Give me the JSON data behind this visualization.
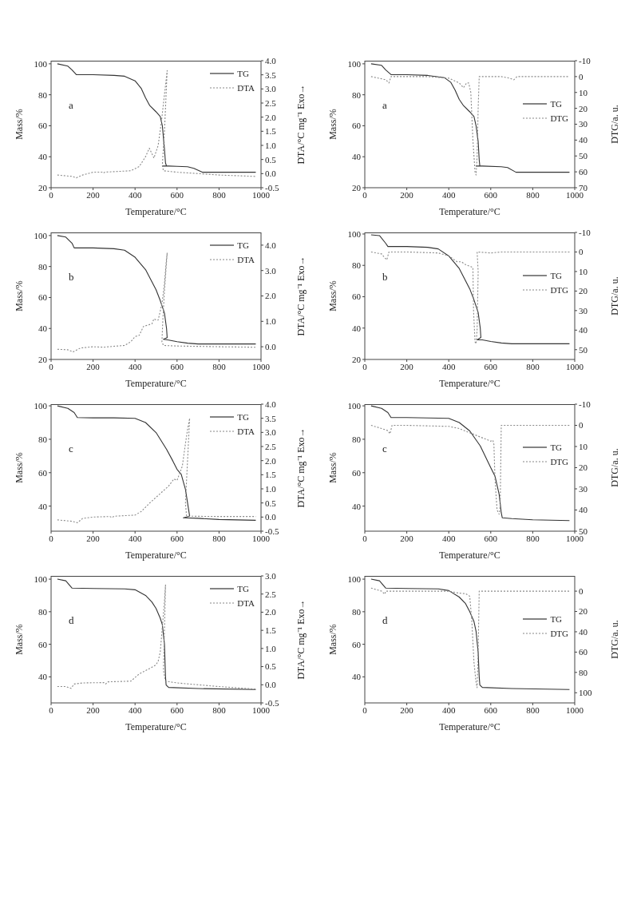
{
  "chart_data": [
    {
      "type": "line",
      "annotations": [
        "a"
      ],
      "xlabel": "Temperature/°C",
      "ylabel": "Mass/%",
      "y2label": "DTA/°C mg⁻¹  Exo→",
      "xlim": [
        0,
        1000
      ],
      "xticks": [
        0,
        200,
        400,
        600,
        800,
        1000
      ],
      "ylim": [
        20,
        102
      ],
      "yticks": [
        20,
        40,
        60,
        80,
        100
      ],
      "y2lim": [
        -0.5,
        4.0
      ],
      "y2ticks": [
        -0.5,
        {
          "value": 0,
          "label": "0.0"
        },
        0.5,
        {
          "value": 1,
          "label": "1.0"
        },
        1.5,
        {
          "value": 2,
          "label": "2.0"
        },
        2.5,
        {
          "value": 3,
          "label": "3.0"
        },
        3.5,
        {
          "value": 4,
          "label": "4.0"
        }
      ],
      "legend": "top right",
      "grid": false,
      "marker": "none",
      "series": [
        {
          "name": "TG",
          "color": "#333333",
          "line_style": "solid",
          "x": [
            30,
            80,
            100,
            120,
            200,
            300,
            350,
            400,
            430,
            450,
            470,
            500,
            520,
            530,
            540,
            545,
            550,
            530,
            560,
            600,
            650,
            680,
            720,
            800,
            975
          ],
          "values": [
            100,
            98.5,
            96,
            93,
            93,
            92.5,
            92,
            89,
            84,
            78,
            73,
            69,
            66,
            60,
            45,
            36,
            34,
            34,
            34,
            33.8,
            33.5,
            32.5,
            30,
            30,
            30
          ]
        },
        {
          "name": "DTA",
          "color": "#888888",
          "line_style": "dotted",
          "axis": "y2",
          "x": [
            30,
            100,
            120,
            150,
            200,
            245,
            250,
            255,
            300,
            380,
            420,
            450,
            468,
            490,
            510,
            525,
            540,
            553,
            540,
            530,
            535,
            600,
            700,
            800,
            975
          ],
          "values": [
            -0.05,
            -0.1,
            -0.15,
            -0.05,
            0.05,
            0.05,
            0.02,
            0.05,
            0.07,
            0.1,
            0.25,
            0.6,
            0.9,
            0.55,
            1.0,
            1.8,
            2.8,
            3.65,
            1.5,
            0.3,
            0.1,
            0.05,
            0.0,
            -0.05,
            -0.1
          ]
        }
      ]
    },
    {
      "type": "line",
      "annotations": [
        "a"
      ],
      "xlabel": "Temperature/°C",
      "ylabel": "Mass/%",
      "y2label": "DTG/a. u.",
      "xlim": [
        0,
        1000
      ],
      "xticks": [
        0,
        200,
        400,
        600,
        800,
        1000
      ],
      "ylim": [
        20,
        102
      ],
      "yticks": [
        20,
        40,
        60,
        80,
        100
      ],
      "y2lim": [
        70,
        -10
      ],
      "y2ticks": [
        -10,
        0,
        10,
        20,
        30,
        40,
        50,
        60,
        70
      ],
      "legend": "right",
      "grid": false,
      "marker": "none",
      "series": [
        {
          "name": "TG",
          "color": "#333333",
          "line_style": "solid",
          "x": [
            30,
            80,
            100,
            125,
            200,
            300,
            380,
            410,
            430,
            450,
            470,
            500,
            520,
            530,
            540,
            545,
            548,
            530,
            560,
            650,
            680,
            720,
            975
          ],
          "values": [
            100,
            99,
            96,
            93,
            93,
            92.5,
            91,
            88,
            83,
            77,
            73,
            69,
            66,
            60,
            50,
            38,
            34,
            34,
            34,
            33.5,
            33,
            30,
            30
          ]
        },
        {
          "name": "DTG",
          "color": "#888888",
          "line_style": "dotted",
          "axis": "y2",
          "x": [
            30,
            100,
            115,
            125,
            200,
            300,
            400,
            450,
            470,
            485,
            495,
            505,
            515,
            525,
            530,
            535,
            540,
            545,
            650,
            690,
            710,
            725,
            975
          ],
          "values": [
            0,
            2,
            4,
            0,
            0,
            0,
            1,
            4,
            7,
            4,
            4,
            10,
            40,
            60,
            62,
            50,
            20,
            0,
            0,
            1,
            2,
            0,
            0
          ]
        }
      ]
    },
    {
      "type": "line",
      "annotations": [
        "b"
      ],
      "xlabel": "Temperature/°C",
      "ylabel": "Mass/%",
      "y2label": "DTA/°C mg⁻¹  Exo→",
      "xlim": [
        0,
        1000
      ],
      "xticks": [
        0,
        200,
        400,
        600,
        800,
        1000
      ],
      "ylim": [
        20,
        102
      ],
      "yticks": [
        20,
        40,
        60,
        80,
        100
      ],
      "y2lim": [
        -0.5,
        4.5
      ],
      "y2ticks": [
        {
          "value": 0,
          "label": "0.0"
        },
        {
          "value": 1,
          "label": "1.0"
        },
        {
          "value": 2,
          "label": "2.0"
        },
        {
          "value": 3,
          "label": "3.0"
        },
        {
          "value": 4,
          "label": "4.0"
        }
      ],
      "legend": "top right",
      "grid": false,
      "marker": "none",
      "series": [
        {
          "name": "TG",
          "color": "#333333",
          "line_style": "solid",
          "x": [
            30,
            70,
            100,
            110,
            200,
            300,
            350,
            400,
            450,
            500,
            520,
            540,
            550,
            553,
            535,
            560,
            600,
            650,
            700,
            975
          ],
          "values": [
            100,
            99,
            95,
            92,
            92,
            91.5,
            90.5,
            86,
            78,
            65,
            58,
            50,
            40,
            34,
            33,
            32.5,
            31.5,
            30.5,
            30,
            30
          ]
        },
        {
          "name": "DTA",
          "color": "#888888",
          "line_style": "dotted",
          "axis": "y2",
          "x": [
            30,
            80,
            105,
            140,
            200,
            250,
            300,
            350,
            380,
            400,
            420,
            440,
            460,
            480,
            490,
            500,
            510,
            520,
            530,
            540,
            548,
            553,
            540,
            532,
            528,
            535,
            600,
            800,
            975
          ],
          "values": [
            -0.1,
            -0.12,
            -0.2,
            -0.05,
            0,
            -0.02,
            0.02,
            0.05,
            0.2,
            0.4,
            0.45,
            0.8,
            0.85,
            0.9,
            1.1,
            1.05,
            1.05,
            1.4,
            1.8,
            2.5,
            3.3,
            3.7,
            2.2,
            1.0,
            0.2,
            0.05,
            0.03,
            0,
            -0.02
          ]
        }
      ]
    },
    {
      "type": "line",
      "annotations": [
        "b"
      ],
      "xlabel": "Temperature/°C",
      "ylabel": "Mass/%",
      "y2label": "DTG/a. u.",
      "xlim": [
        0,
        1000
      ],
      "xticks": [
        0,
        200,
        400,
        600,
        800,
        1000
      ],
      "ylim": [
        20,
        101
      ],
      "yticks": [
        20,
        40,
        60,
        80,
        100
      ],
      "y2lim": [
        55,
        -10
      ],
      "y2ticks": [
        -10,
        0,
        10,
        20,
        30,
        40,
        50
      ],
      "legend": "right",
      "grid": false,
      "marker": "none",
      "series": [
        {
          "name": "TG",
          "color": "#333333",
          "line_style": "solid",
          "x": [
            30,
            70,
            100,
            110,
            200,
            300,
            350,
            400,
            450,
            500,
            520,
            540,
            550,
            553,
            535,
            560,
            600,
            650,
            700,
            975
          ],
          "values": [
            99.5,
            99,
            94,
            92,
            92,
            91.5,
            90.5,
            86,
            78,
            65,
            58,
            50,
            40,
            34,
            32.5,
            32.5,
            31.5,
            30.5,
            30,
            30
          ]
        },
        {
          "name": "DTG",
          "color": "#888888",
          "line_style": "dotted",
          "axis": "y2",
          "x": [
            30,
            80,
            95,
            105,
            115,
            200,
            350,
            400,
            440,
            460,
            480,
            505,
            515,
            518,
            525,
            530,
            535,
            540,
            535,
            600,
            650,
            975
          ],
          "values": [
            0,
            1,
            3,
            4,
            0,
            0,
            0.5,
            2,
            5,
            5,
            6.5,
            7.5,
            8,
            30,
            46,
            47,
            40,
            10,
            0,
            0.5,
            0,
            0
          ]
        }
      ]
    },
    {
      "type": "line",
      "annotations": [
        "c"
      ],
      "xlabel": "Temperature/°C",
      "ylabel": "Mass/%",
      "y2label": "DTA/°C mg⁻¹  Exo→",
      "xlim": [
        0,
        1000
      ],
      "xticks": [
        0,
        200,
        400,
        600,
        800,
        1000
      ],
      "ylim": [
        25,
        101
      ],
      "yticks": [
        40,
        60,
        80,
        100
      ],
      "y2lim": [
        -0.5,
        4.0
      ],
      "y2ticks": [
        -0.5,
        {
          "value": 0,
          "label": "0.0"
        },
        0.5,
        {
          "value": 1,
          "label": "1.0"
        },
        1.5,
        {
          "value": 2,
          "label": "2.0"
        },
        2.5,
        {
          "value": 3,
          "label": "3.0"
        },
        3.5,
        {
          "value": 4,
          "label": "4.0"
        }
      ],
      "legend": "top right",
      "grid": false,
      "marker": "none",
      "series": [
        {
          "name": "TG",
          "color": "#333333",
          "line_style": "solid",
          "x": [
            30,
            80,
            110,
            125,
            200,
            300,
            400,
            450,
            500,
            550,
            580,
            600,
            620,
            640,
            655,
            660,
            630,
            700,
            800,
            975
          ],
          "values": [
            100,
            98.5,
            96,
            93,
            92.8,
            92.8,
            92.5,
            90,
            84,
            74,
            67,
            62,
            59,
            50,
            38,
            34,
            33,
            32.7,
            32,
            31.5
          ]
        },
        {
          "name": "DTA",
          "color": "#888888",
          "line_style": "dotted",
          "axis": "y2",
          "x": [
            30,
            100,
            125,
            150,
            200,
            280,
            290,
            300,
            400,
            430,
            470,
            500,
            530,
            560,
            585,
            600,
            610,
            625,
            640,
            650,
            660,
            650,
            640,
            645,
            660,
            800,
            975
          ],
          "values": [
            -0.1,
            -0.15,
            -0.2,
            -0.05,
            0,
            0.02,
            -0.02,
            0.03,
            0.07,
            0.2,
            0.5,
            0.7,
            0.9,
            1.1,
            1.35,
            1.3,
            1.5,
            1.8,
            2.6,
            3.1,
            3.5,
            2.0,
            0.5,
            0.05,
            0.03,
            0.02,
            0.02
          ]
        }
      ]
    },
    {
      "type": "line",
      "annotations": [
        "c"
      ],
      "xlabel": "Temperature/°C",
      "ylabel": "Mass/%",
      "y2label": "DTG/a. u.",
      "xlim": [
        0,
        1000
      ],
      "xticks": [
        0,
        200,
        400,
        600,
        800,
        1000
      ],
      "ylim": [
        25,
        101
      ],
      "yticks": [
        40,
        60,
        80,
        100
      ],
      "y2lim": [
        50,
        -10
      ],
      "y2ticks": [
        -10,
        0,
        10,
        20,
        30,
        40,
        50
      ],
      "legend": "right",
      "grid": false,
      "marker": "none",
      "series": [
        {
          "name": "TG",
          "color": "#333333",
          "line_style": "solid",
          "x": [
            30,
            80,
            110,
            125,
            200,
            400,
            450,
            500,
            550,
            600,
            620,
            640,
            650,
            655,
            700,
            800,
            975
          ],
          "values": [
            100,
            98.5,
            96,
            93,
            93,
            92.5,
            90,
            85,
            76,
            63,
            58,
            47,
            36,
            33,
            32.5,
            31.8,
            31.3
          ]
        },
        {
          "name": "DTG",
          "color": "#888888",
          "line_style": "dotted",
          "axis": "y2",
          "x": [
            30,
            80,
            110,
            120,
            130,
            200,
            400,
            450,
            500,
            550,
            600,
            610,
            615,
            620,
            630,
            640,
            645,
            648,
            650,
            700,
            975
          ],
          "values": [
            0,
            1.5,
            2.5,
            4,
            0,
            0,
            0.5,
            1.5,
            3.5,
            5.5,
            7.5,
            7,
            9,
            25,
            40,
            42,
            38,
            15,
            0,
            0,
            0
          ]
        }
      ]
    },
    {
      "type": "line",
      "annotations": [
        "d"
      ],
      "xlabel": "Temperature/°C",
      "ylabel": "Mass/%",
      "y2label": "DTA/°C mg⁻¹  Exo→",
      "xlim": [
        0,
        1000
      ],
      "xticks": [
        0,
        200,
        400,
        600,
        800,
        1000
      ],
      "ylim": [
        24,
        102
      ],
      "yticks": [
        40,
        60,
        80,
        100
      ],
      "y2lim": [
        -0.5,
        3.0
      ],
      "y2ticks": [
        -0.5,
        {
          "value": 0,
          "label": "0.0"
        },
        0.5,
        {
          "value": 1,
          "label": "1.0"
        },
        1.5,
        {
          "value": 2,
          "label": "2.0"
        },
        2.5,
        {
          "value": 3,
          "label": "3.0"
        }
      ],
      "legend": "top right",
      "grid": false,
      "marker": "none",
      "series": [
        {
          "name": "TG",
          "color": "#333333",
          "line_style": "solid",
          "x": [
            30,
            70,
            100,
            200,
            350,
            400,
            450,
            480,
            500,
            520,
            530,
            540,
            545,
            548,
            560,
            700,
            975
          ],
          "values": [
            100,
            99,
            94.5,
            94.3,
            94,
            93.5,
            90,
            86,
            82,
            76,
            72,
            60,
            40,
            35,
            33.5,
            32.8,
            32.2
          ]
        },
        {
          "name": "DTA",
          "color": "#888888",
          "line_style": "dotted",
          "axis": "y2",
          "x": [
            30,
            70,
            95,
            110,
            150,
            250,
            260,
            270,
            380,
            420,
            470,
            500,
            510,
            520,
            530,
            540,
            545,
            540,
            535,
            545,
            600,
            800,
            975
          ],
          "values": [
            -0.05,
            -0.05,
            -0.1,
            0.02,
            0.05,
            0.06,
            0.02,
            0.08,
            0.1,
            0.3,
            0.45,
            0.55,
            0.65,
            0.9,
            1.6,
            2.3,
            2.75,
            1.5,
            0.4,
            0.1,
            0.05,
            -0.05,
            -0.12
          ]
        }
      ]
    },
    {
      "type": "line",
      "annotations": [
        "d"
      ],
      "xlabel": "Temperature/°C",
      "ylabel": "Mass/%",
      "y2label": "DTG/a. u.",
      "xlim": [
        0,
        1000
      ],
      "xticks": [
        0,
        200,
        400,
        600,
        800,
        1000
      ],
      "ylim": [
        24,
        102
      ],
      "yticks": [
        40,
        60,
        80,
        100
      ],
      "y2lim": [
        110,
        -15
      ],
      "y2ticks": [
        0,
        20,
        40,
        60,
        80,
        100
      ],
      "legend": "right",
      "grid": false,
      "marker": "none",
      "series": [
        {
          "name": "TG",
          "color": "#333333",
          "line_style": "solid",
          "x": [
            30,
            70,
            100,
            200,
            350,
            400,
            450,
            480,
            500,
            520,
            530,
            540,
            545,
            548,
            560,
            700,
            975
          ],
          "values": [
            100,
            99,
            94.5,
            94.3,
            94,
            93,
            89,
            85,
            80,
            74,
            68,
            55,
            40,
            35,
            33.5,
            32.8,
            32.2
          ]
        },
        {
          "name": "DTG",
          "color": "#888888",
          "line_style": "dotted",
          "axis": "y2",
          "x": [
            30,
            80,
            95,
            100,
            200,
            400,
            450,
            480,
            500,
            510,
            520,
            530,
            535,
            540,
            545,
            700,
            975
          ],
          "values": [
            -3,
            0,
            3,
            0,
            0,
            0,
            2,
            2.5,
            5,
            30,
            70,
            90,
            95,
            60,
            0,
            0,
            0
          ]
        }
      ]
    }
  ]
}
